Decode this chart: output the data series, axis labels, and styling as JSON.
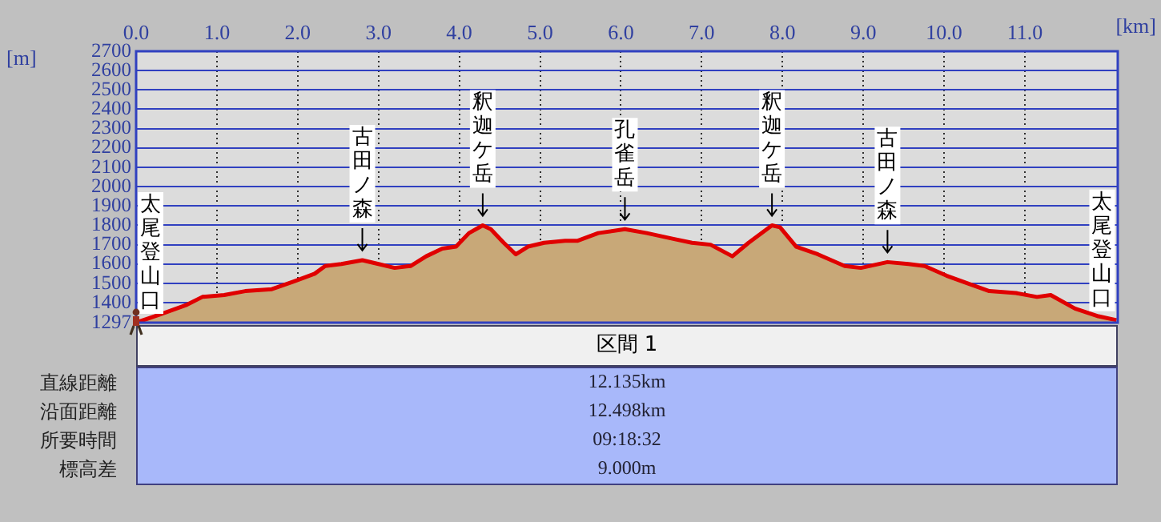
{
  "chart_data": [
    {
      "type": "area",
      "xlabel": "[km]",
      "ylabel": "[m]",
      "color": "#e00000",
      "x": [
        0,
        0.3,
        0.63,
        0.82,
        1.09,
        1.35,
        1.68,
        1.95,
        2.21,
        2.34,
        2.54,
        2.8,
        3.0,
        3.2,
        3.4,
        3.59,
        3.79,
        3.96,
        4.12,
        4.29,
        4.39,
        4.55,
        4.7,
        4.85,
        5.05,
        5.31,
        5.46,
        5.72,
        6.05,
        6.32,
        6.65,
        6.88,
        7.11,
        7.38,
        7.58,
        7.87,
        7.97,
        8.17,
        8.44,
        8.77,
        8.97,
        9.3,
        9.56,
        9.76,
        10.03,
        10.29,
        10.56,
        10.89,
        11.15,
        11.32,
        11.62,
        11.91,
        12.135
      ],
      "values": [
        1297,
        1340,
        1390,
        1430,
        1440,
        1460,
        1470,
        1510,
        1550,
        1590,
        1600,
        1620,
        1600,
        1580,
        1590,
        1640,
        1680,
        1690,
        1760,
        1800,
        1780,
        1710,
        1650,
        1690,
        1710,
        1720,
        1720,
        1760,
        1780,
        1760,
        1730,
        1710,
        1700,
        1640,
        1710,
        1800,
        1790,
        1690,
        1650,
        1590,
        1580,
        1610,
        1600,
        1590,
        1540,
        1500,
        1460,
        1450,
        1430,
        1440,
        1370,
        1330,
        1310
      ],
      "xlim": [
        0,
        12.15
      ],
      "xticks": [
        {
          "value": 0,
          "label": "0.0"
        },
        {
          "value": 1,
          "label": "1.0"
        },
        {
          "value": 2,
          "label": "2.0"
        },
        {
          "value": 3,
          "label": "3.0"
        },
        {
          "value": 4,
          "label": "4.0"
        },
        {
          "value": 5,
          "label": "5.0"
        },
        {
          "value": 6,
          "label": "6.0"
        },
        {
          "value": 7,
          "label": "7.0"
        },
        {
          "value": 8,
          "label": "8.0"
        },
        {
          "value": 9,
          "label": "9.0"
        },
        {
          "value": 10,
          "label": "10.0"
        },
        {
          "value": 11,
          "label": "11.0"
        }
      ],
      "ylim": [
        1297,
        2700
      ],
      "yticks": [
        1297,
        1400,
        1500,
        1600,
        1700,
        1800,
        1900,
        2000,
        2100,
        2200,
        2300,
        2400,
        2500,
        2600,
        2700
      ],
      "grid": true,
      "legend": false,
      "marker": "none",
      "line_style": "solid",
      "annotations": [
        {
          "text": "太尾登山口",
          "x": 0,
          "y": 1297
        },
        {
          "text": "古田ノ森",
          "x": 2.8,
          "y": 1620
        },
        {
          "text": "釈迦ケ岳",
          "x": 4.29,
          "y": 1800
        },
        {
          "text": "孔雀岳",
          "x": 6.05,
          "y": 1780
        },
        {
          "text": "釈迦ケ岳",
          "x": 7.87,
          "y": 1800
        },
        {
          "text": "古田ノ森",
          "x": 9.3,
          "y": 1610
        },
        {
          "text": "太尾登山口",
          "x": 12.135,
          "y": 1310
        }
      ]
    },
    {
      "type": "other",
      "title": "区間 1",
      "annotations": [
        "直線距離",
        "12.135km",
        "沿面距離",
        "12.498km",
        "所要時間",
        "09:18:32",
        "標高差",
        "9.000m"
      ]
    }
  ]
}
